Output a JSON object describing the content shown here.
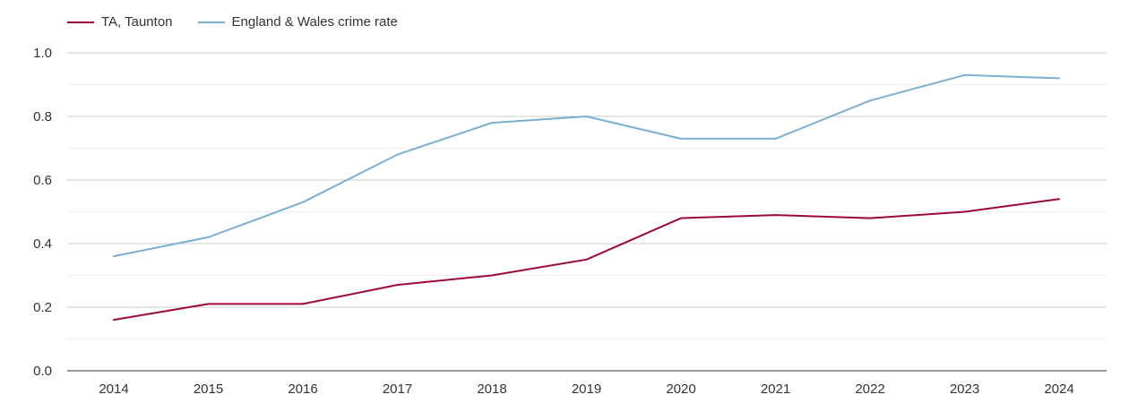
{
  "chart_data": {
    "type": "line",
    "title": "",
    "xlabel": "",
    "ylabel": "",
    "categories": [
      "2014",
      "2015",
      "2016",
      "2017",
      "2018",
      "2019",
      "2020",
      "2021",
      "2022",
      "2023",
      "2024"
    ],
    "ylim": [
      0,
      1.0
    ],
    "yticks": [
      "0.0",
      "0.2",
      "0.4",
      "0.6",
      "0.8",
      "1.0"
    ],
    "grid": true,
    "legend_position": "top-left",
    "series": [
      {
        "name": "TA, Taunton",
        "color": "#9b0a35",
        "values": [
          0.16,
          0.21,
          0.21,
          0.27,
          0.3,
          0.35,
          0.48,
          0.49,
          0.48,
          0.5,
          0.54
        ]
      },
      {
        "name": "England & Wales crime rate",
        "color": "#7aafd1",
        "values": [
          0.36,
          0.42,
          0.53,
          0.68,
          0.78,
          0.8,
          0.73,
          0.73,
          0.85,
          0.93,
          0.92
        ]
      }
    ]
  }
}
